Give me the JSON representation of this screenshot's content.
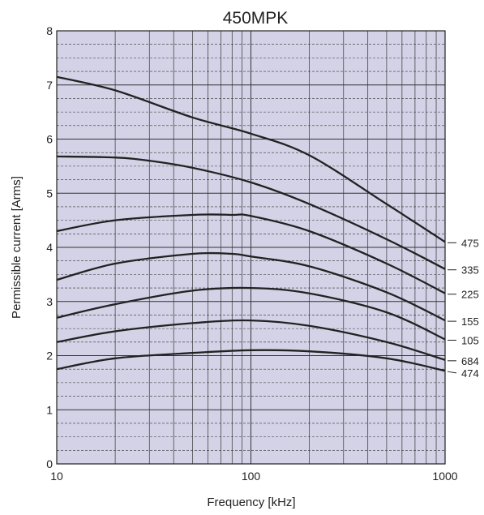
{
  "chart_data": {
    "type": "line",
    "title": "450MPK",
    "xlabel": "Frequency [kHz]",
    "ylabel": "Permissible current [Arms]",
    "x_scale": "log",
    "xlim": [
      10,
      1000
    ],
    "ylim": [
      0,
      8
    ],
    "x_ticks": [
      {
        "value": 10,
        "label": "10"
      },
      {
        "value": 100,
        "label": "100"
      },
      {
        "value": 1000,
        "label": "1000"
      }
    ],
    "y_ticks": [
      {
        "value": 0,
        "label": "0"
      },
      {
        "value": 1,
        "label": "1"
      },
      {
        "value": 2,
        "label": "2"
      },
      {
        "value": 3,
        "label": "3"
      },
      {
        "value": 4,
        "label": "4"
      },
      {
        "value": 5,
        "label": "5"
      },
      {
        "value": 6,
        "label": "6"
      },
      {
        "value": 7,
        "label": "7"
      },
      {
        "value": 8,
        "label": "8"
      }
    ],
    "grid": true,
    "plot_background": "#d4d2e6",
    "line_color": "#222222",
    "series": [
      {
        "name": "475",
        "x": [
          10,
          20,
          50,
          100,
          200,
          500,
          1000
        ],
        "y": [
          7.15,
          6.9,
          6.4,
          6.1,
          5.7,
          4.8,
          4.1
        ]
      },
      {
        "name": "335",
        "x": [
          10,
          20,
          30,
          50,
          100,
          200,
          500,
          1000
        ],
        "y": [
          5.68,
          5.66,
          5.6,
          5.47,
          5.2,
          4.8,
          4.15,
          3.6
        ]
      },
      {
        "name": "225",
        "x": [
          10,
          20,
          50,
          80,
          100,
          200,
          500,
          1000
        ],
        "y": [
          4.3,
          4.5,
          4.6,
          4.6,
          4.58,
          4.3,
          3.7,
          3.15
        ]
      },
      {
        "name": "155",
        "x": [
          10,
          20,
          50,
          80,
          100,
          200,
          500,
          1000
        ],
        "y": [
          3.4,
          3.7,
          3.88,
          3.88,
          3.83,
          3.65,
          3.17,
          2.65
        ]
      },
      {
        "name": "105",
        "x": [
          10,
          20,
          50,
          100,
          200,
          500,
          1000
        ],
        "y": [
          2.7,
          2.95,
          3.2,
          3.25,
          3.15,
          2.8,
          2.3
        ]
      },
      {
        "name": "684",
        "x": [
          10,
          20,
          50,
          100,
          200,
          500,
          1000
        ],
        "y": [
          2.25,
          2.45,
          2.6,
          2.65,
          2.55,
          2.25,
          1.92
        ]
      },
      {
        "name": "474",
        "x": [
          10,
          20,
          50,
          100,
          200,
          500,
          1000
        ],
        "y": [
          1.75,
          1.95,
          2.05,
          2.1,
          2.08,
          1.95,
          1.72
        ]
      }
    ]
  }
}
